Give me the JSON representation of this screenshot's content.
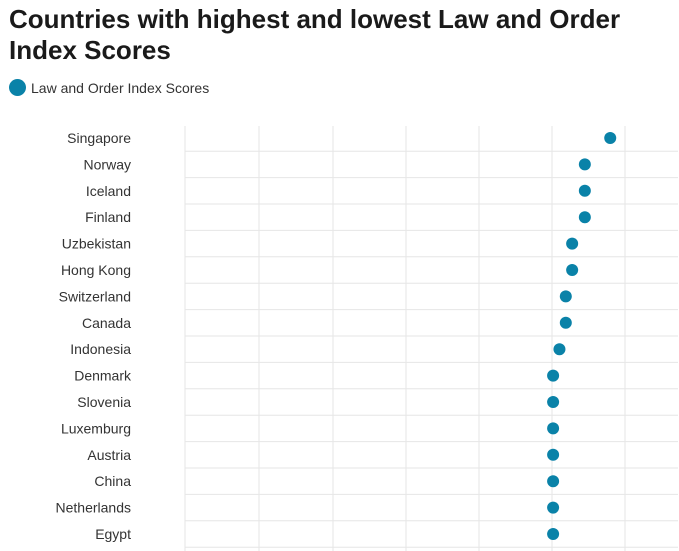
{
  "chart_data": {
    "type": "scatter",
    "title": "Countries with highest and lowest Law and Order Index Scores",
    "legend": [
      "Law and Order Index Scores"
    ],
    "xlabel": "",
    "ylabel": "",
    "xlim": [
      0,
      100
    ],
    "grid": true,
    "categories": [
      "Singapore",
      "Norway",
      "Iceland",
      "Finland",
      "Uzbekistan",
      "Hong Kong",
      "Switzerland",
      "Canada",
      "Indonesia",
      "Denmark",
      "Slovenia",
      "Luxemburg",
      "Austria",
      "China",
      "Netherlands",
      "Egypt"
    ],
    "series": [
      {
        "name": "Law and Order Index Scores",
        "values": [
          97,
          93,
          93,
          93,
          91,
          91,
          90,
          90,
          89,
          88,
          88,
          88,
          88,
          88,
          88,
          88
        ]
      }
    ]
  },
  "colors": {
    "series": "#0a82a8",
    "grid": "#e6e6e6"
  }
}
